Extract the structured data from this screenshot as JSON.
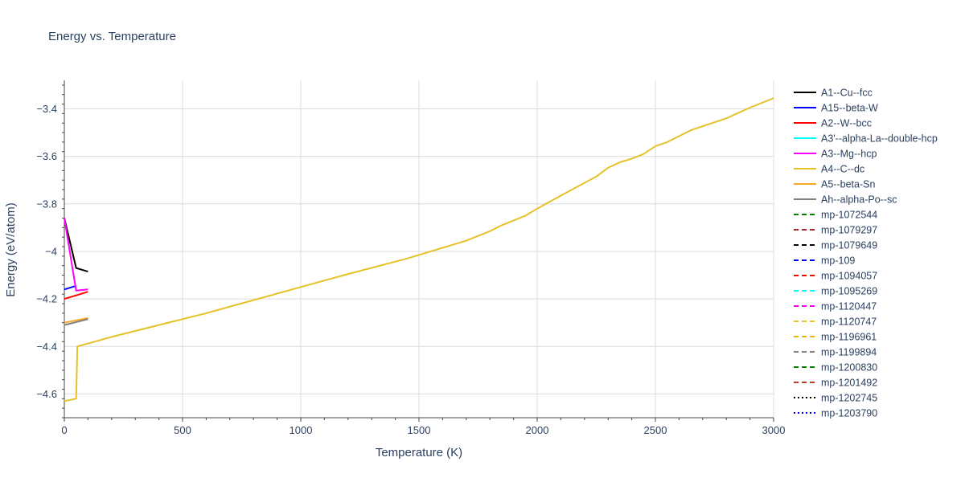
{
  "chart_data": {
    "type": "line",
    "title": "Energy vs. Temperature",
    "xlabel": "Temperature (K)",
    "ylabel": "Energy (eV/atom)",
    "xlim": [
      0,
      3000
    ],
    "ylim": [
      -4.7,
      -3.28
    ],
    "x_ticks": [
      0,
      500,
      1000,
      1500,
      2000,
      2500,
      3000
    ],
    "x_tick_labels": [
      "0",
      "500",
      "1000",
      "1500",
      "2000",
      "2500",
      "3000"
    ],
    "y_ticks": [
      -4.6,
      -4.4,
      -4.2,
      -4.0,
      -3.8,
      -3.6,
      -3.4
    ],
    "y_tick_labels": [
      "−4.6",
      "−4.4",
      "−4.2",
      "−4",
      "−3.8",
      "−3.6",
      "−3.4"
    ],
    "grid": true,
    "legend_position": "right",
    "series": [
      {
        "name": "A1--Cu--fcc",
        "color": "#000000",
        "dash": "solid",
        "x": [
          0,
          50,
          100
        ],
        "y": [
          -3.86,
          -4.07,
          -4.085
        ]
      },
      {
        "name": "A15--beta-W",
        "color": "#0000ff",
        "dash": "solid",
        "x": [
          0,
          50
        ],
        "y": [
          -4.16,
          -4.145
        ]
      },
      {
        "name": "A2--W--bcc",
        "color": "#ff0000",
        "dash": "solid",
        "x": [
          0,
          50,
          100
        ],
        "y": [
          -4.2,
          -4.185,
          -4.17
        ]
      },
      {
        "name": "A3'--alpha-La--double-hcp",
        "color": "#00ffff",
        "dash": "solid",
        "x": [],
        "y": []
      },
      {
        "name": "A3--Mg--hcp",
        "color": "#ff00ff",
        "dash": "solid",
        "x": [
          0,
          50,
          100
        ],
        "y": [
          -3.86,
          -4.165,
          -4.16
        ]
      },
      {
        "name": "A4--C--dc",
        "color": "#e6c229",
        "dash": "solid",
        "x": [
          0,
          50,
          55,
          200,
          400,
          600,
          800,
          1000,
          1200,
          1450,
          1700,
          1800,
          1850,
          1950,
          2000,
          2100,
          2250,
          2300,
          2350,
          2400,
          2450,
          2500,
          2550,
          2650,
          2800,
          2900,
          3000
        ],
        "y": [
          -4.63,
          -4.62,
          -4.4,
          -4.36,
          -4.31,
          -4.26,
          -4.205,
          -4.15,
          -4.095,
          -4.03,
          -3.955,
          -3.915,
          -3.89,
          -3.85,
          -3.82,
          -3.765,
          -3.685,
          -3.648,
          -3.625,
          -3.61,
          -3.59,
          -3.557,
          -3.54,
          -3.49,
          -3.44,
          -3.395,
          -3.355
        ]
      },
      {
        "name": "A5--beta-Sn",
        "color": "#f5a623",
        "dash": "solid",
        "x": [
          0,
          100
        ],
        "y": [
          -4.3,
          -4.28
        ]
      },
      {
        "name": "Ah--alpha-Po--sc",
        "color": "#808080",
        "dash": "solid",
        "x": [
          0,
          100
        ],
        "y": [
          -4.31,
          -4.285
        ]
      },
      {
        "name": "mp-1072544",
        "color": "#008000",
        "dash": "dashed",
        "x": [],
        "y": []
      },
      {
        "name": "mp-1079297",
        "color": "#a52a2a",
        "dash": "dashed",
        "x": [],
        "y": []
      },
      {
        "name": "mp-1079649",
        "color": "#000000",
        "dash": "dashed",
        "x": [],
        "y": []
      },
      {
        "name": "mp-109",
        "color": "#0000ff",
        "dash": "dashed",
        "x": [],
        "y": []
      },
      {
        "name": "mp-1094057",
        "color": "#ff0000",
        "dash": "dashed",
        "x": [],
        "y": []
      },
      {
        "name": "mp-1095269",
        "color": "#00ffff",
        "dash": "dashed",
        "x": [],
        "y": []
      },
      {
        "name": "mp-1120447",
        "color": "#ff00ff",
        "dash": "dashed",
        "x": [],
        "y": []
      },
      {
        "name": "mp-1120747",
        "color": "#e6c229",
        "dash": "dashed",
        "x": [],
        "y": []
      },
      {
        "name": "mp-1196961",
        "color": "#e6b800",
        "dash": "dashed",
        "x": [],
        "y": []
      },
      {
        "name": "mp-1199894",
        "color": "#808080",
        "dash": "dashed",
        "x": [],
        "y": []
      },
      {
        "name": "mp-1200830",
        "color": "#008000",
        "dash": "dashed",
        "x": [],
        "y": []
      },
      {
        "name": "mp-1201492",
        "color": "#c0392b",
        "dash": "dashed",
        "x": [],
        "y": []
      },
      {
        "name": "mp-1202745",
        "color": "#000000",
        "dash": "dotted",
        "x": [],
        "y": []
      },
      {
        "name": "mp-1203790",
        "color": "#0000ff",
        "dash": "dotted",
        "x": [],
        "y": []
      }
    ]
  }
}
